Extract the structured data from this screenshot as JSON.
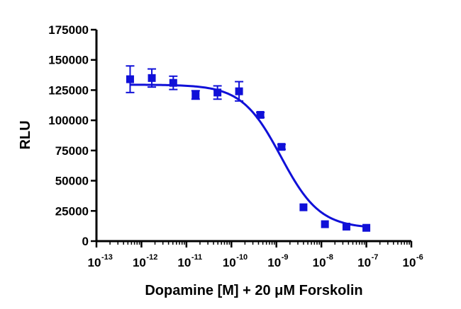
{
  "chart_data": {
    "type": "scatter",
    "title": "",
    "xlabel": "Dopamine [M] + 20 μM Forskolin",
    "ylabel": "RLU",
    "x_scale": "log",
    "x_range_log10": [
      -13,
      -6
    ],
    "x_tick_base": "10",
    "x_tick_exponents": [
      "-13",
      "-12",
      "-11",
      "-10",
      "-9",
      "-8",
      "-7",
      "-6"
    ],
    "ylim": [
      0,
      175000
    ],
    "y_ticks": [
      "0",
      "25000",
      "50000",
      "75000",
      "100000",
      "125000",
      "150000",
      "175000"
    ],
    "grid": false,
    "legend": "none",
    "series": [
      {
        "x": [
          5.6e-13,
          1.7e-12,
          5.1e-12,
          1.6e-11,
          4.9e-11,
          1.48e-10,
          4.4e-10,
          1.3e-09,
          4e-09,
          1.2e-08,
          3.6e-08,
          1e-07
        ],
        "y": [
          134000,
          135000,
          131000,
          121000,
          123000,
          124000,
          104500,
          78000,
          28000,
          14000,
          12000,
          11000
        ],
        "error": [
          11000,
          7500,
          5500,
          3500,
          5500,
          8000,
          2000,
          2000,
          1500,
          1000,
          1000,
          1000
        ]
      }
    ],
    "fit": {
      "bottom": 10500,
      "top": 129500,
      "log_ic50": -8.9,
      "hill_slope": -1.0
    },
    "colors": {
      "series": "#1010d8",
      "axes": "#000000"
    }
  }
}
